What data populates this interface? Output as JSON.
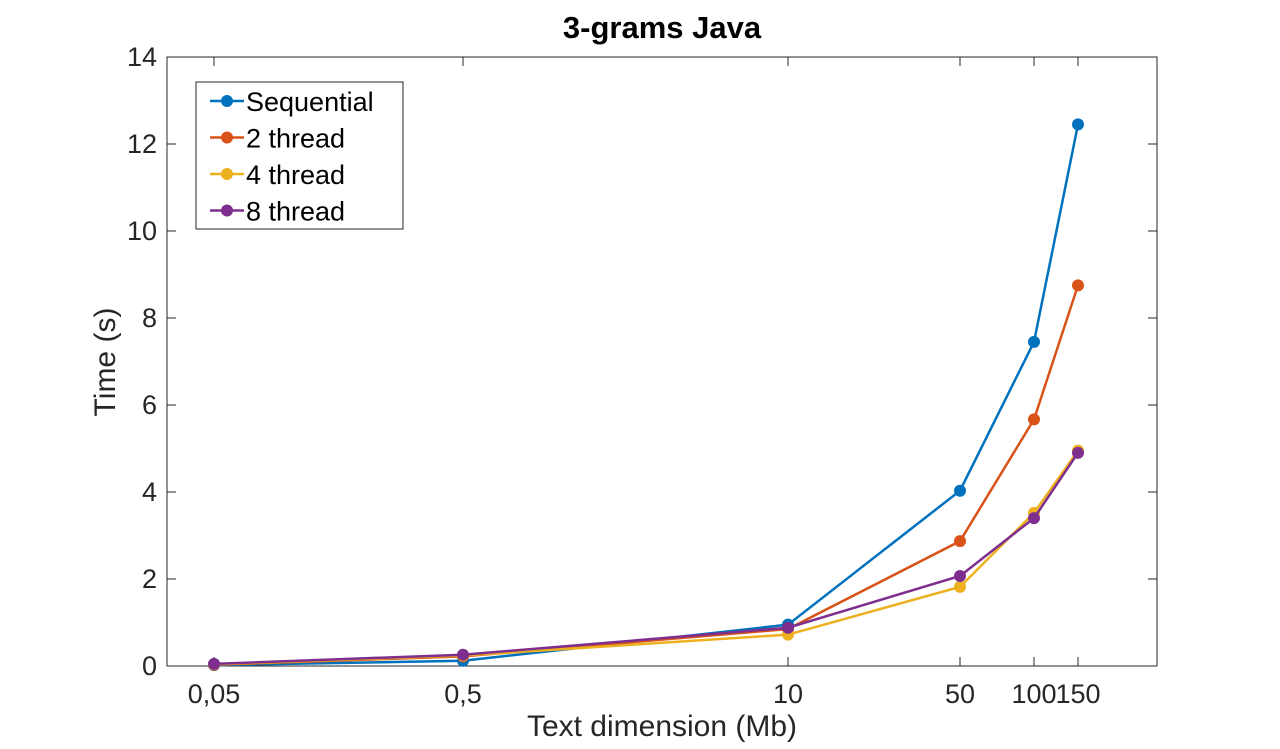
{
  "chart_data": {
    "type": "line",
    "title": "3-grams Java",
    "xlabel": "Text dimension (Mb)",
    "ylabel": "Time (s)",
    "x": [
      0.05,
      0.5,
      10,
      50,
      100,
      150
    ],
    "x_tick_labels": [
      "0,05",
      "0,5",
      "10",
      "50",
      "100",
      "150"
    ],
    "y_ticks": [
      0,
      2,
      4,
      6,
      8,
      10,
      12,
      14
    ],
    "ylim": [
      0,
      14
    ],
    "x_scale": "non-uniform (categorical-like spacing)",
    "grid": false,
    "legend": {
      "position": "top-left"
    },
    "series": [
      {
        "name": "Sequential",
        "color": "#0072BD",
        "values": [
          0.02,
          0.12,
          0.95,
          4.03,
          7.45,
          12.45
        ]
      },
      {
        "name": "2 thread",
        "color": "#D95319",
        "values": [
          0.03,
          0.22,
          0.85,
          2.87,
          5.67,
          8.75
        ]
      },
      {
        "name": "4 thread",
        "color": "#EDB120",
        "values": [
          0.04,
          0.24,
          0.72,
          1.82,
          3.52,
          4.95
        ]
      },
      {
        "name": "8 thread",
        "color": "#7E2F8E",
        "values": [
          0.05,
          0.26,
          0.88,
          2.07,
          3.4,
          4.9
        ]
      }
    ]
  }
}
